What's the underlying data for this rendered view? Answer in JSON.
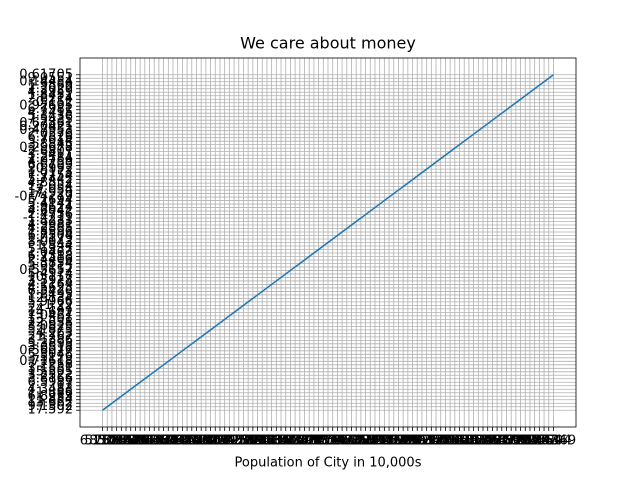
{
  "chart_data": {
    "type": "line",
    "title": "We care about money",
    "x_label": "Population of City in 10,000s",
    "grid": true,
    "color": "#1f77b4",
    "x": [
      "6.1101",
      "5.5277",
      "8.5186",
      "7.0032",
      "5.8598",
      "8.3829",
      "7.4764",
      "8.5781",
      "6.4862",
      "5.0546",
      "5.7107",
      "14.164",
      "5.734",
      "8.4084",
      "5.6407",
      "5.3794",
      "6.3654",
      "5.1301",
      "6.4296",
      "7.0708",
      "6.1891",
      "20.27",
      "5.4901",
      "6.3261",
      "5.5649",
      "18.945",
      "12.828",
      "10.957",
      "13.176",
      "22.203",
      "5.2524",
      "6.5894",
      "9.2482",
      "5.8918",
      "8.2111",
      "7.9334",
      "8.0959",
      "5.6063",
      "12.836",
      "6.3534",
      "5.4069",
      "6.8825",
      "11.708",
      "5.7737",
      "7.8247",
      "7.0931",
      "5.0702",
      "5.8014",
      "11.7",
      "5.5416",
      "7.5402",
      "5.3077",
      "7.4239",
      "7.6031",
      "6.3328",
      "6.3589",
      "6.2742",
      "5.6397",
      "9.3102",
      "9.4536",
      "8.8254",
      "5.1793",
      "21.279",
      "14.908",
      "18.959",
      "7.2182",
      "8.2951",
      "10.236",
      "5.4994",
      "20.341",
      "10.136",
      "7.3345",
      "6.0062",
      "7.2259",
      "5.0269",
      "6.5479",
      "7.5386",
      "5.0365",
      "10.274",
      "5.1077",
      "5.7292",
      "5.1884",
      "6.3557",
      "9.7687",
      "6.5159",
      "8.5172",
      "9.1802",
      "6.002",
      "5.5204",
      "5.0594",
      "5.7077",
      "7.6366",
      "5.8707",
      "5.3054",
      "8.2934",
      "13.394",
      "5.4369"
    ],
    "y": [
      "17.592",
      "9.1302",
      "13.662",
      "11.854",
      "6.8233",
      "11.886",
      "4.3483",
      "12",
      "6.5987",
      "3.8166",
      "3.2522",
      "15.505",
      "3.1551",
      "7.2258",
      "0.71618",
      "3.5129",
      "5.3048",
      "0.56077",
      "3.6518",
      "5.3893",
      "3.1386",
      "21.767",
      "4.263",
      "5.1875",
      "3.0825",
      "22.638",
      "13.501",
      "7.0467",
      "14.692",
      "24.147",
      "-1.22",
      "5.9966",
      "12.134",
      "1.8495",
      "6.5426",
      "4.5623",
      "4.1164",
      "3.3928",
      "10.117",
      "5.4974",
      "0.55657",
      "3.9115",
      "5.3854",
      "2.4406",
      "6.7318",
      "1.0463",
      "5.1337",
      "1.844",
      "8.0043",
      "1.0179",
      "6.7504",
      "1.8396",
      "4.2885",
      "4.9981",
      "1.4233",
      "-1.4211",
      "2.4756",
      "4.6042",
      "3.9624",
      "5.4141",
      "5.1694",
      "-0.74279",
      "17.929",
      "12.054",
      "17.054",
      "4.8852",
      "5.7442",
      "7.7754",
      "1.0173",
      "20.992",
      "6.6799",
      "4.0259",
      "1.2784",
      "3.3411",
      "-2.6807",
      "0.29678",
      "3.8845",
      "5.7014",
      "6.7526",
      "2.0576",
      "0.47953",
      "0.20421",
      "0.67861",
      "7.5435",
      "5.3436",
      "4.2415",
      "6.7981",
      "0.92695",
      "0.152",
      "2.8214",
      "1.8451",
      "4.2959",
      "7.2029",
      "1.9869",
      "0.14454",
      "9.0551",
      "0.61705"
    ]
  }
}
